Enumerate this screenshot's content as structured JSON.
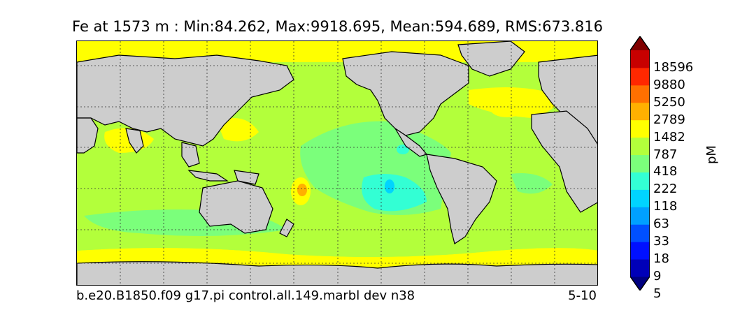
{
  "title": "Fe at 1573 m : Min:84.262, Max:9918.695, Mean:594.689, RMS:673.816",
  "footer": {
    "case_name": "b.e20.B1850.f09 g17.pi control.all.149.marbl dev n38",
    "years": "5-10"
  },
  "colorbar": {
    "unit_label": "pM",
    "ticks": [
      "18596",
      "9880",
      "5250",
      "2789",
      "1482",
      "787",
      "418",
      "222",
      "118",
      "63",
      "33",
      "18",
      "9",
      "5"
    ],
    "colors": [
      "#000080",
      "#0000b8",
      "#0010ff",
      "#0050ff",
      "#00a0ff",
      "#00d4ff",
      "#33ffd4",
      "#7bff7b",
      "#b3ff3b",
      "#ffff00",
      "#ffb000",
      "#ff7000",
      "#ff2800",
      "#c80000",
      "#800000"
    ]
  },
  "map_colors": {
    "land": "#cdcdcd",
    "sea_ice_gap": "#ffffff",
    "gridline": "#333333"
  }
}
